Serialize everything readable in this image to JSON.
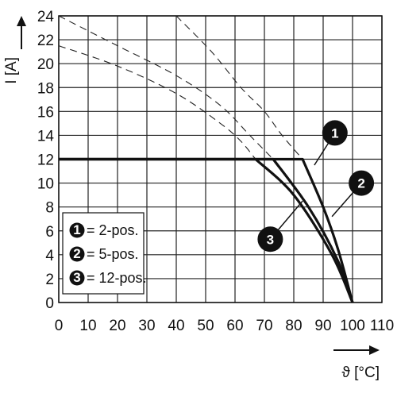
{
  "chart_data": {
    "type": "line",
    "xlabel": "ϑ [°C]",
    "ylabel": "I [A]",
    "xlim": [
      0,
      110
    ],
    "ylim": [
      0,
      24
    ],
    "x_ticks": [
      0,
      10,
      20,
      30,
      40,
      50,
      60,
      70,
      80,
      90,
      100,
      110
    ],
    "y_ticks": [
      0,
      2,
      4,
      6,
      8,
      10,
      12,
      14,
      16,
      18,
      20,
      22,
      24
    ],
    "grid": true,
    "series": [
      {
        "name": "2-pos.",
        "marker": "1",
        "x": [
          0,
          83,
          90,
          95,
          100
        ],
        "y": [
          12,
          12,
          8,
          4.5,
          0
        ]
      },
      {
        "name": "5-pos.",
        "marker": "2",
        "x": [
          0,
          73,
          85,
          95,
          100
        ],
        "y": [
          12,
          12,
          8,
          3.5,
          0
        ]
      },
      {
        "name": "12-pos.",
        "marker": "3",
        "x": [
          0,
          67,
          80,
          93,
          100
        ],
        "y": [
          12,
          12,
          9,
          4,
          0
        ]
      }
    ],
    "derating_curves": [
      {
        "x": [
          40,
          52,
          62,
          70,
          76,
          83
        ],
        "y": [
          24,
          21,
          18,
          16,
          14,
          12
        ]
      },
      {
        "x": [
          0,
          20,
          40,
          55,
          65,
          73
        ],
        "y": [
          24,
          21.5,
          19,
          16.5,
          14,
          12
        ]
      },
      {
        "x": [
          0,
          20,
          40,
          55,
          62,
          67
        ],
        "y": [
          21.5,
          19.8,
          17.5,
          15,
          13.5,
          12
        ]
      }
    ],
    "legend": {
      "placement": "bottom-left",
      "entries": [
        {
          "marker": "1",
          "label": "= 2-pos."
        },
        {
          "marker": "2",
          "label": "= 5-pos."
        },
        {
          "marker": "3",
          "label": "= 12-pos."
        }
      ]
    },
    "annotations": [
      {
        "marker": "1",
        "x": 94,
        "y": 14.2,
        "leader_to": [
          87,
          11.5
        ]
      },
      {
        "marker": "2",
        "x": 103,
        "y": 10,
        "leader_to": [
          93,
          7.2
        ]
      },
      {
        "marker": "3",
        "x": 72,
        "y": 5.3,
        "leader_to": [
          83,
          8.5
        ]
      }
    ]
  }
}
